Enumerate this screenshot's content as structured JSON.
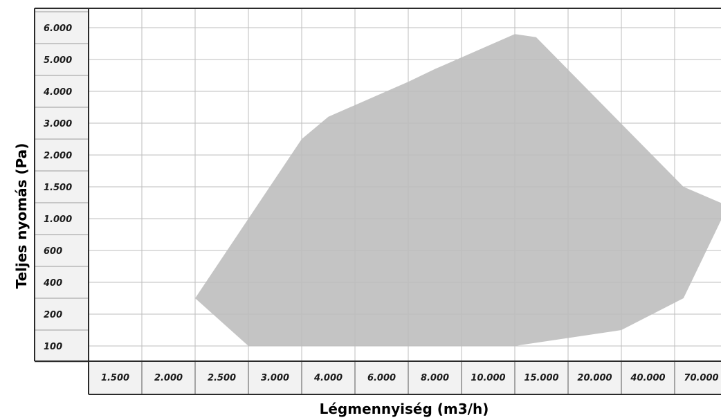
{
  "chart_data": {
    "type": "area",
    "title": "",
    "xlabel": "Légmennyiség (m3/h)",
    "ylabel": "Teljes nyomás (Pa)",
    "x_scale": "categorical-ticks",
    "y_scale": "categorical-ticks",
    "x_ticks": [
      "1.500",
      "2.000",
      "2.500",
      "3.000",
      "4.000",
      "6.000",
      "8.000",
      "10.000",
      "15.000",
      "20.000",
      "40.000",
      "70.000"
    ],
    "y_ticks": [
      "100",
      "200",
      "400",
      "600",
      "1.000",
      "1.500",
      "2.000",
      "3.000",
      "4.000",
      "5.000",
      "6.000"
    ],
    "grid": true,
    "legend": "none",
    "series": [
      {
        "fill_color": "#c4c4c4",
        "points": [
          {
            "x": 2000,
            "y": 300
          },
          {
            "x": 3000,
            "y": 2500
          },
          {
            "x": 3500,
            "y": 3200
          },
          {
            "x": 6000,
            "y": 4300
          },
          {
            "x": 7000,
            "y": 4700
          },
          {
            "x": 10000,
            "y": 5800
          },
          {
            "x": 12000,
            "y": 5700
          },
          {
            "x": 45000,
            "y": 1500
          },
          {
            "x": 70000,
            "y": 1200
          },
          {
            "x": 45000,
            "y": 300
          },
          {
            "x": 20000,
            "y": 150
          },
          {
            "x": 10000,
            "y": 100
          },
          {
            "x": 3500,
            "y": 100
          },
          {
            "x": 3000,
            "y": 100
          },
          {
            "x": 2500,
            "y": 100
          }
        ]
      }
    ]
  }
}
